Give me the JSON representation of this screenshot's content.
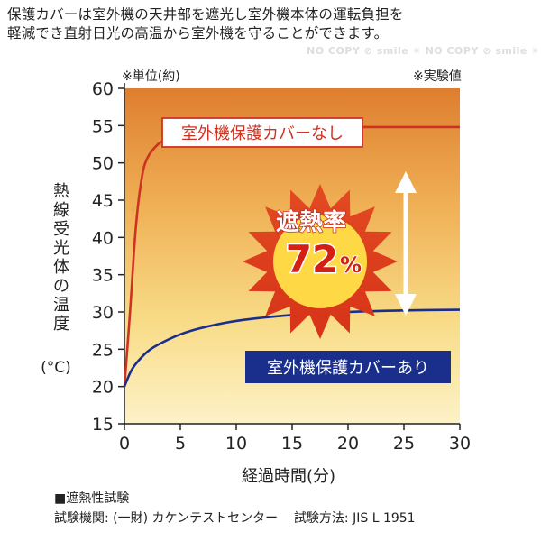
{
  "header": {
    "line1": "保護カバーは室外機の天井部を遮光し室外機本体の運転負担を",
    "line2": "軽減でき直射日光の高温から室外機を守ることができます。",
    "watermark": "NO COPY ⊘ smile ✳ NO COPY ⊘ smile ✳ NO COPY ⊘ smile"
  },
  "notes": {
    "unit": "※単位(約)",
    "measured": "※実験値"
  },
  "chart_data": {
    "type": "line",
    "xlabel": "経過時間(分)",
    "ylabel_lines": [
      "熱",
      "線",
      "受",
      "光",
      "体",
      "の",
      "温",
      "度"
    ],
    "ylabel_unit": "(°C)",
    "xlim": [
      0,
      30
    ],
    "ylim": [
      15,
      60
    ],
    "xticks": [
      0,
      5,
      10,
      15,
      20,
      25,
      30
    ],
    "yticks": [
      15,
      20,
      25,
      30,
      35,
      40,
      45,
      50,
      55,
      60
    ],
    "series": [
      {
        "name": "室外機保護カバーなし",
        "color": "#cc3322",
        "x": [
          0,
          0.5,
          1,
          1.5,
          2,
          3,
          4,
          5,
          7,
          10,
          15,
          20,
          25,
          30
        ],
        "y": [
          20,
          30,
          41,
          47.5,
          50.5,
          52.5,
          53.3,
          53.8,
          54.3,
          54.6,
          54.8,
          54.8,
          54.8,
          54.8
        ]
      },
      {
        "name": "室外機保護カバーあり",
        "color": "#1a2e8c",
        "x": [
          0,
          0.5,
          1,
          2,
          3,
          5,
          7,
          10,
          15,
          20,
          25,
          30
        ],
        "y": [
          20,
          21.8,
          23,
          24.6,
          25.6,
          27,
          27.9,
          28.8,
          29.6,
          30,
          30.2,
          30.3
        ]
      }
    ],
    "badge": {
      "title": "遮熱率",
      "value": "72",
      "unit": "%"
    }
  },
  "footer": {
    "heading": "■遮熱性試験",
    "detail_label_org": "試験機関: (一財) カケンテストセンター",
    "detail_label_method": "試験方法: JIS L 1951"
  }
}
